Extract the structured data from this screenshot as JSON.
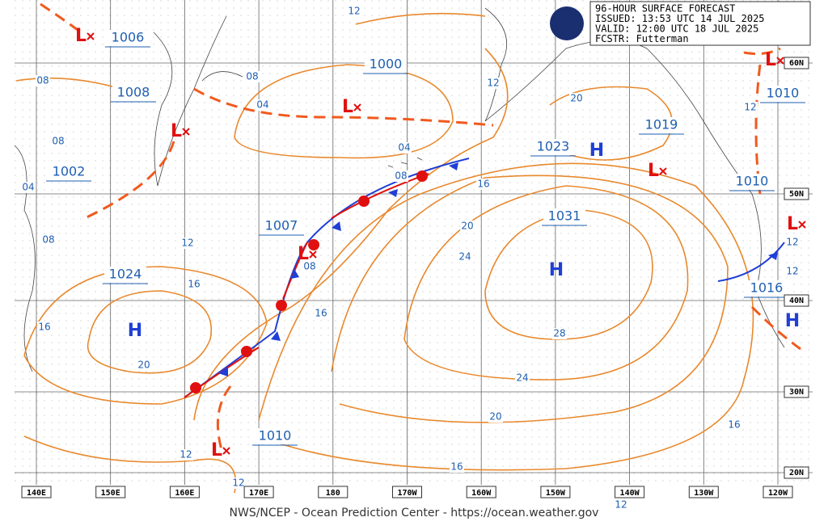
{
  "header": {
    "lines": [
      "96-HOUR SURFACE FORECAST",
      "ISSUED: 13:53 UTC 14 JUL 2025",
      "VALID:  12:00 UTC 18 JUL 2025",
      "FCSTR:  Futterman"
    ]
  },
  "footer": "NWS/NCEP - Ocean Prediction Center - https://ocean.weather.gov",
  "longitudes": [
    "140E",
    "150E",
    "160E",
    "170E",
    "180",
    "170W",
    "160W",
    "150W",
    "140W",
    "130W",
    "120W"
  ],
  "latitudes": [
    "60N",
    "50N",
    "40N",
    "30N",
    "20N"
  ],
  "centers": [
    "L",
    "L",
    "L",
    "L",
    "L",
    "L",
    "L",
    "L",
    "H",
    "H",
    "H",
    "H"
  ],
  "pressures": [
    "1006",
    "1008",
    "1002",
    "1000",
    "1007",
    "1024",
    "1023",
    "1019",
    "1031",
    "1010",
    "1010",
    "1016",
    "1010"
  ],
  "isobar_labels": [
    "12",
    "08",
    "08",
    "04",
    "12",
    "20",
    "12",
    "08",
    "04",
    "08",
    "16",
    "04",
    "08",
    "12",
    "20",
    "24",
    "16",
    "08",
    "12",
    "12",
    "16",
    "16",
    "28",
    "20",
    "24",
    "20",
    "16",
    "12",
    "16",
    "12",
    "12"
  ]
}
